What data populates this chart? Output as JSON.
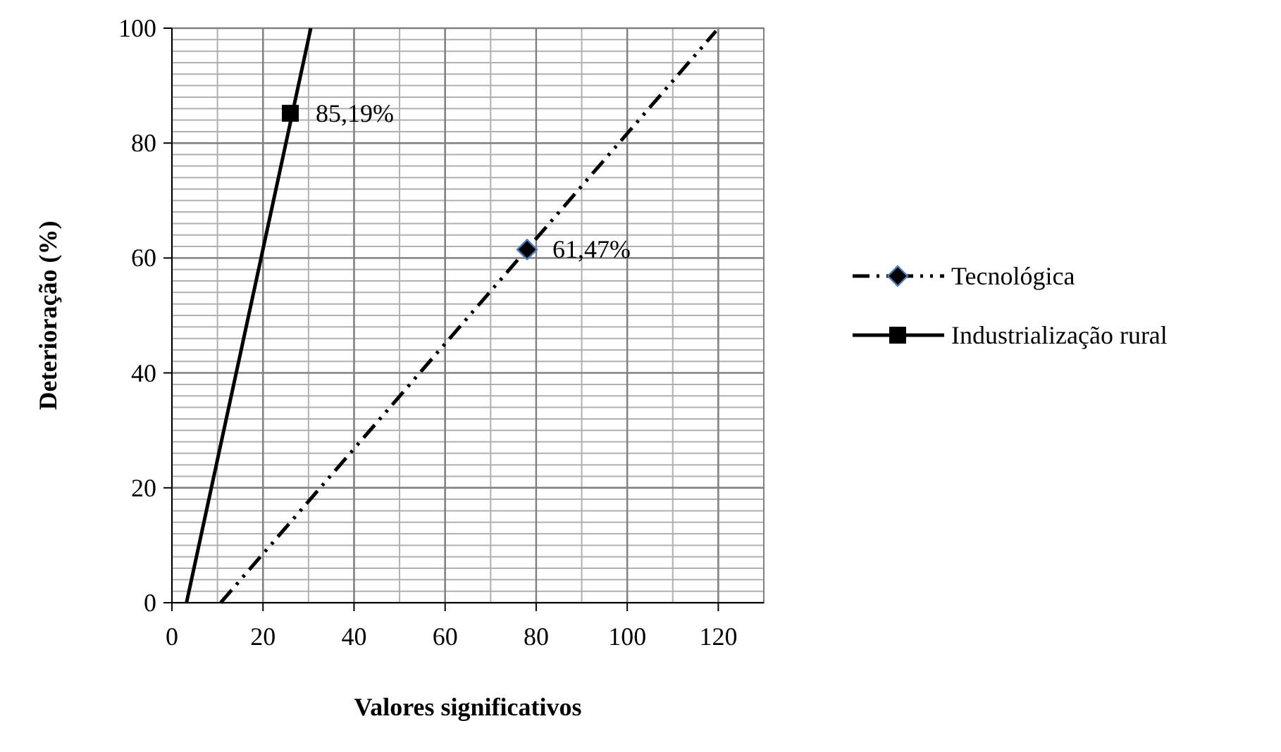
{
  "chart_data": {
    "type": "line",
    "xlabel": "Valores significativos",
    "ylabel": "Deterioração (%)",
    "xlim": [
      0,
      130
    ],
    "xticks": [
      0,
      20,
      40,
      60,
      80,
      100,
      120
    ],
    "ylim": [
      0,
      100
    ],
    "yticks": [
      0,
      20,
      40,
      60,
      80,
      100
    ],
    "grid": true,
    "legend": "right",
    "series": [
      {
        "color": "#000000",
        "line_style": "dashed",
        "marker": "none",
        "x": [
          10.7,
          119.5
        ],
        "values": [
          0,
          99.5
        ]
      },
      {
        "color": "#000000",
        "line_style": "solid",
        "marker": "none",
        "x": [
          3.2,
          30.5
        ],
        "values": [
          0,
          100
        ]
      },
      {
        "type": "scatter",
        "name": "Tecnológica",
        "color": "#000000",
        "marker": "diamond",
        "line_style": "dashed",
        "x": [
          78
        ],
        "values": [
          61.47
        ],
        "value_labels": [
          "61,47%"
        ]
      },
      {
        "type": "scatter",
        "name": "Industrialização rural",
        "color": "#000000",
        "marker": "square",
        "line_style": "solid",
        "x": [
          26
        ],
        "values": [
          85.19
        ],
        "value_labels": [
          "85,19%"
        ]
      }
    ]
  }
}
